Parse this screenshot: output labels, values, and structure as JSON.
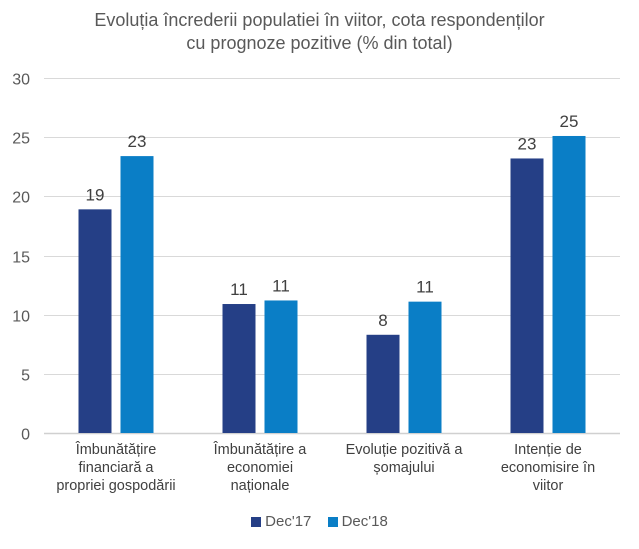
{
  "chart_data": {
    "type": "bar",
    "title": "Evoluția încrederii populatiei în viitor, cota respondenților cu prognoze pozitive (% din total)",
    "title_lines": [
      "Evoluția încrederii populatiei în viitor, cota respondenților",
      "cu prognoze pozitive (% din total)"
    ],
    "categories": [
      [
        "Îmbunătățire",
        "financiară a",
        "propriei gospodării"
      ],
      [
        "Îmbunătățire a",
        "economiei",
        "naționale"
      ],
      [
        "Evoluție pozitivă a",
        "șomajului"
      ],
      [
        "Intenție de",
        "economisire în",
        "viitor"
      ]
    ],
    "series": [
      {
        "name": "Dec'17",
        "color": "#253F86",
        "values": [
          18.9,
          10.9,
          8.3,
          23.2
        ],
        "labels": [
          "19",
          "11",
          "8",
          "23"
        ]
      },
      {
        "name": "Dec'18",
        "color": "#0A7EC6",
        "values": [
          23.4,
          11.2,
          11.1,
          25.1
        ],
        "labels": [
          "23",
          "11",
          "11",
          "25"
        ]
      }
    ],
    "xlabel": "",
    "ylabel": "",
    "ylim": [
      0,
      30
    ],
    "yticks": [
      0,
      5,
      10,
      15,
      20,
      25,
      30
    ],
    "grid": true,
    "legend_position": "bottom-center"
  }
}
